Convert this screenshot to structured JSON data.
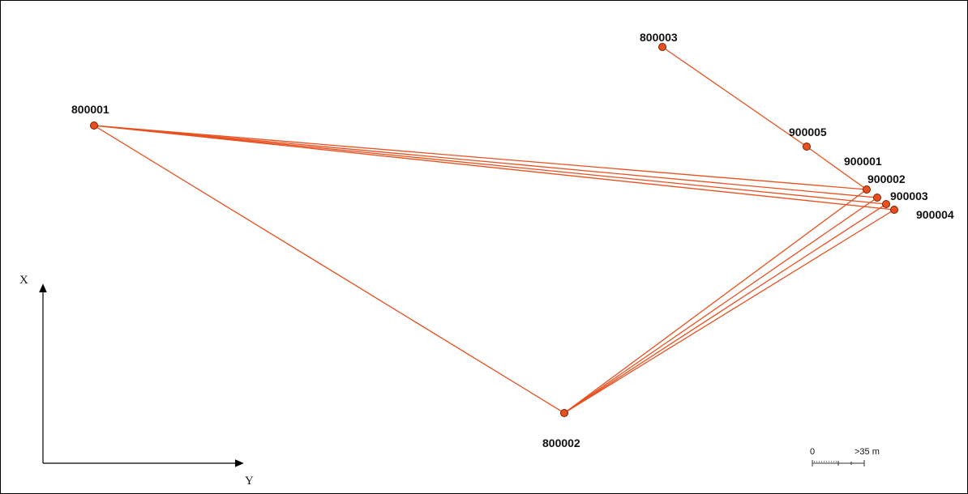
{
  "colors": {
    "line": "#e8501f",
    "point_fill": "#e8501f",
    "point_stroke": "#7a1e00",
    "axis": "#000000"
  },
  "points": [
    {
      "id": "800001",
      "label": "800001"
    },
    {
      "id": "800002",
      "label": "800002"
    },
    {
      "id": "800003",
      "label": "800003"
    },
    {
      "id": "900005",
      "label": "900005"
    },
    {
      "id": "900001",
      "label": "900001"
    },
    {
      "id": "900002",
      "label": "900002"
    },
    {
      "id": "900003",
      "label": "900003"
    },
    {
      "id": "900004",
      "label": "900004"
    }
  ],
  "connections": [
    [
      "800001",
      "800002"
    ],
    [
      "800001",
      "900001"
    ],
    [
      "800001",
      "900002"
    ],
    [
      "800001",
      "900003"
    ],
    [
      "800001",
      "900004"
    ],
    [
      "800002",
      "900001"
    ],
    [
      "800002",
      "900002"
    ],
    [
      "800002",
      "900003"
    ],
    [
      "800002",
      "900004"
    ],
    [
      "800003",
      "900005"
    ],
    [
      "900005",
      "900001"
    ]
  ],
  "axes": {
    "x_label": "X",
    "y_label": "Y"
  },
  "scale_bar": {
    "start_label": "0",
    "end_label": ">35 m"
  }
}
